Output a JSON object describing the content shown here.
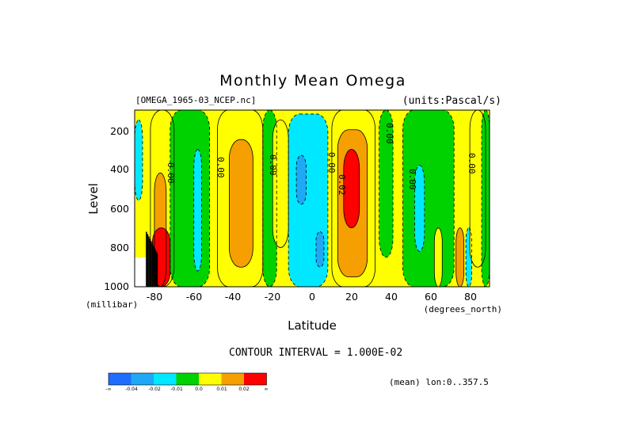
{
  "chart_data": {
    "type": "heatmap",
    "title": "Monthly Mean Omega",
    "dataset": "[OMEGA_1965-03_NCEP.nc]",
    "units": "(units:Pascal/s)",
    "xlabel": "Latitude",
    "ylabel": "Level",
    "x_units": "(degrees_north)",
    "y_units": "(millibar)",
    "xlim": [
      -90,
      90
    ],
    "ylim": [
      1000,
      100
    ],
    "x_ticks": [
      "-80",
      "-60",
      "-40",
      "-20",
      "0",
      "20",
      "40",
      "60",
      "80"
    ],
    "y_ticks": [
      "200",
      "400",
      "600",
      "800",
      "1000"
    ],
    "contour_interval": "CONTOUR INTERVAL = 1.000E-02",
    "footer": "(mean) lon:0..357.5",
    "contour_labels": [
      "0.00",
      "0.00",
      "0.00",
      "0.00",
      "0.00",
      "0.00",
      "0.00",
      "0.02"
    ],
    "legend_labels": [
      "-∞",
      "-0.04",
      "-0.02",
      "-0.01",
      "0.0",
      "0.01",
      "0.02",
      "∞"
    ],
    "colors": {
      "lt_neg04": "#1f6dff",
      "neg04_neg02": "#1ea8f5",
      "neg02_neg01": "#00e8ff",
      "neg01_0": "#00d200",
      "0_001": "#ffff00",
      "001_002": "#f5a000",
      "gt_002": "#ff0000",
      "black": "#000000"
    },
    "regions": [
      {
        "bin": "neg02_neg01",
        "lat_range": [
          -90,
          -86
        ],
        "lev_range": [
          150,
          560
        ]
      },
      {
        "bin": "0_001",
        "lat_range": [
          -82,
          -70
        ],
        "lev_range": [
          100,
          1000
        ]
      },
      {
        "bin": "001_002",
        "lat_range": [
          -80,
          -74
        ],
        "lev_range": [
          420,
          1000
        ]
      },
      {
        "bin": "gt_002",
        "lat_range": [
          -81,
          -72
        ],
        "lev_range": [
          700,
          1000
        ]
      },
      {
        "bin": "neg01_0",
        "lat_range": [
          -72,
          -52
        ],
        "lev_range": [
          100,
          1000
        ]
      },
      {
        "bin": "neg02_neg01",
        "lat_range": [
          -60,
          -56
        ],
        "lev_range": [
          300,
          920
        ]
      },
      {
        "bin": "0_001",
        "lat_range": [
          -48,
          -25
        ],
        "lev_range": [
          100,
          1000
        ]
      },
      {
        "bin": "001_002",
        "lat_range": [
          -42,
          -30
        ],
        "lev_range": [
          250,
          900
        ]
      },
      {
        "bin": "neg01_0",
        "lat_range": [
          -25,
          -18
        ],
        "lev_range": [
          100,
          1000
        ]
      },
      {
        "bin": "0_001",
        "lat_range": [
          -20,
          -12
        ],
        "lev_range": [
          150,
          800
        ]
      },
      {
        "bin": "neg02_neg01",
        "lat_range": [
          -12,
          8
        ],
        "lev_range": [
          120,
          1000
        ]
      },
      {
        "bin": "neg04_neg02",
        "lat_range": [
          -8,
          -3
        ],
        "lev_range": [
          330,
          580
        ]
      },
      {
        "bin": "neg04_neg02",
        "lat_range": [
          2,
          6
        ],
        "lev_range": [
          720,
          900
        ]
      },
      {
        "bin": "0_001",
        "lat_range": [
          10,
          32
        ],
        "lev_range": [
          100,
          1000
        ]
      },
      {
        "bin": "001_002",
        "lat_range": [
          13,
          28
        ],
        "lev_range": [
          200,
          950
        ]
      },
      {
        "bin": "gt_002",
        "lat_range": [
          16,
          24
        ],
        "lev_range": [
          300,
          700
        ]
      },
      {
        "bin": "neg01_0",
        "lat_range": [
          34,
          41
        ],
        "lev_range": [
          100,
          850
        ]
      },
      {
        "bin": "neg01_0",
        "lat_range": [
          46,
          72
        ],
        "lev_range": [
          100,
          1000
        ]
      },
      {
        "bin": "neg02_neg01",
        "lat_range": [
          52,
          57
        ],
        "lev_range": [
          380,
          820
        ]
      },
      {
        "bin": "0_001",
        "lat_range": [
          62,
          66
        ],
        "lev_range": [
          700,
          1000
        ]
      },
      {
        "bin": "001_002",
        "lat_range": [
          73,
          77
        ],
        "lev_range": [
          700,
          1000
        ]
      },
      {
        "bin": "neg02_neg01",
        "lat_range": [
          78,
          81
        ],
        "lev_range": [
          700,
          1000
        ]
      },
      {
        "bin": "0_001",
        "lat_range": [
          80,
          88
        ],
        "lev_range": [
          100,
          900
        ]
      },
      {
        "bin": "neg01_0",
        "lat_range": [
          86,
          90
        ],
        "lev_range": [
          100,
          1000
        ]
      }
    ]
  }
}
